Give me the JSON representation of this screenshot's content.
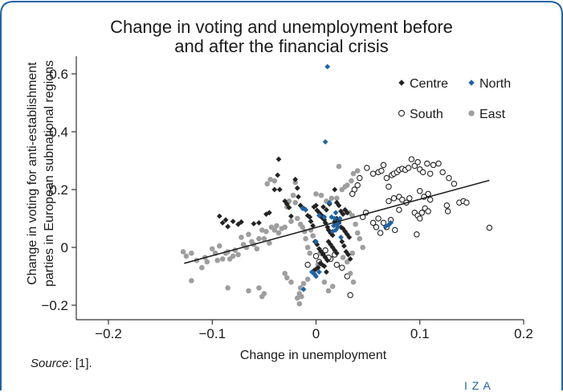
{
  "chart_data": {
    "type": "scatter",
    "title": "Change in voting and unemployment before and after the financial crisis",
    "title_lines": [
      "Change in voting and unemployment before",
      "and after the financial crisis"
    ],
    "xlabel": "Change in unemployment",
    "ylabel": "Change in voting for anti-establishment parties in European subnational regions",
    "ylabel_lines": [
      "Change in voting for anti-establishment",
      "parties in European subnational regions"
    ],
    "xlim": [
      -0.2,
      0.2
    ],
    "ylim": [
      -0.22,
      0.63
    ],
    "xticks": [
      -0.2,
      -0.1,
      0,
      0.1,
      0.2
    ],
    "xtick_labels": [
      "−0.2",
      "−0.1",
      "0",
      "0.1",
      "0.2"
    ],
    "yticks": [
      -0.2,
      0,
      0.2,
      0.4,
      0.6
    ],
    "ytick_labels": [
      "−0.2",
      "0",
      "0.2",
      "0.4",
      "0.6"
    ],
    "grid": false,
    "legend_position": "top-right",
    "colors": {
      "Centre": "#222222",
      "North": "#1f63a6",
      "South": "#222222",
      "East": "#9e9e9e",
      "trend": "#222222",
      "frame": "#1f63a6"
    },
    "trendline": {
      "x": [
        -0.127,
        0.167
      ],
      "y": [
        -0.055,
        0.232
      ]
    },
    "series": [
      {
        "name": "Centre",
        "marker": "diamond",
        "points": [
          [
            -0.093,
            0.108
          ],
          [
            -0.09,
            0.085
          ],
          [
            -0.087,
            0.095
          ],
          [
            -0.085,
            0.072
          ],
          [
            -0.08,
            0.09
          ],
          [
            -0.075,
            0.08
          ],
          [
            -0.072,
            0.088
          ],
          [
            -0.06,
            0.082
          ],
          [
            -0.055,
            0.085
          ],
          [
            -0.048,
            0.115
          ],
          [
            -0.045,
            0.12
          ],
          [
            -0.04,
            0.2
          ],
          [
            -0.037,
            0.25
          ],
          [
            -0.036,
            0.305
          ],
          [
            -0.035,
            0.2
          ],
          [
            -0.03,
            0.16
          ],
          [
            -0.028,
            0.15
          ],
          [
            -0.026,
            0.138
          ],
          [
            -0.024,
            0.108
          ],
          [
            -0.02,
            0.235
          ],
          [
            -0.018,
            0.205
          ],
          [
            -0.017,
            0.175
          ],
          [
            -0.015,
            0.145
          ],
          [
            -0.012,
            0.135
          ],
          [
            -0.01,
            0.13
          ],
          [
            -0.008,
            0.11
          ],
          [
            -0.006,
            0.105
          ],
          [
            -0.005,
            0.09
          ],
          [
            -0.003,
            0.075
          ],
          [
            -0.002,
            0.14
          ],
          [
            0.0,
            0.145
          ],
          [
            0.001,
            0.128
          ],
          [
            0.003,
            0.12
          ],
          [
            0.005,
            0.112
          ],
          [
            0.006,
            0.102
          ],
          [
            0.008,
            0.095
          ],
          [
            0.009,
            0.085
          ],
          [
            0.011,
            0.07
          ],
          [
            0.012,
            0.06
          ],
          [
            0.014,
            0.05
          ],
          [
            0.016,
            0.042
          ],
          [
            0.018,
            0.09
          ],
          [
            0.02,
            0.1
          ],
          [
            0.022,
            0.085
          ],
          [
            0.024,
            0.07
          ],
          [
            0.026,
            0.065
          ],
          [
            0.028,
            0.055
          ],
          [
            0.03,
            0.045
          ],
          [
            0.032,
            0.035
          ],
          [
            -0.001,
            0.02
          ],
          [
            0.001,
            0.01
          ],
          [
            0.003,
            -0.005
          ],
          [
            0.005,
            -0.015
          ],
          [
            0.007,
            -0.025
          ],
          [
            0.009,
            -0.035
          ],
          [
            0.011,
            -0.045
          ],
          [
            0.004,
            -0.055
          ],
          [
            0.006,
            -0.06
          ],
          [
            0.008,
            -0.065
          ],
          [
            0.002,
            -0.07
          ],
          [
            0.0,
            -0.075
          ],
          [
            -0.002,
            -0.08
          ],
          [
            0.01,
            -0.085
          ],
          [
            0.012,
            0.02
          ],
          [
            0.014,
            0.01
          ],
          [
            0.016,
            0.0
          ],
          [
            0.018,
            -0.01
          ],
          [
            0.02,
            -0.02
          ],
          [
            0.022,
            0.145
          ],
          [
            0.024,
            0.125
          ],
          [
            0.026,
            0.115
          ],
          [
            0.028,
            0.13
          ],
          [
            0.03,
            0.12
          ],
          [
            0.02,
            0.155
          ],
          [
            0.018,
            0.2
          ],
          [
            0.025,
            0.02
          ],
          [
            0.027,
            0.005
          ],
          [
            0.029,
            -0.015
          ],
          [
            0.031,
            -0.025
          ],
          [
            0.033,
            -0.04
          ],
          [
            0.01,
            0.13
          ],
          [
            0.013,
            0.15
          ],
          [
            0.007,
            0.14
          ]
        ]
      },
      {
        "name": "North",
        "marker": "diamond",
        "points": [
          [
            0.011,
            0.625
          ],
          [
            0.009,
            0.365
          ],
          [
            -0.013,
            0.135
          ],
          [
            -0.01,
            0.13
          ],
          [
            0.003,
            0.11
          ],
          [
            0.008,
            0.105
          ],
          [
            0.013,
            0.155
          ],
          [
            0.018,
            0.1
          ],
          [
            0.02,
            0.08
          ],
          [
            0.019,
            0.06
          ],
          [
            0.021,
            0.07
          ],
          [
            0.017,
            0.075
          ],
          [
            0.022,
            0.09
          ],
          [
            0.0,
            0.02
          ],
          [
            -0.002,
            -0.09
          ],
          [
            -0.001,
            -0.095
          ],
          [
            0.0,
            -0.1
          ],
          [
            -0.004,
            -0.085
          ],
          [
            0.003,
            -0.085
          ],
          [
            -0.012,
            -0.145
          ],
          [
            0.024,
            0.035
          ],
          [
            0.07,
            0.078
          ],
          [
            0.067,
            0.072
          ],
          [
            0.072,
            0.085
          ],
          [
            0.019,
            0.12
          ],
          [
            0.015,
            0.105
          ],
          [
            0.016,
            0.055
          ],
          [
            0.023,
            0.1
          ]
        ]
      },
      {
        "name": "South",
        "marker": "circle",
        "points": [
          [
            0.049,
            0.275
          ],
          [
            0.055,
            0.255
          ],
          [
            0.06,
            0.26
          ],
          [
            0.063,
            0.265
          ],
          [
            0.065,
            0.285
          ],
          [
            0.068,
            0.24
          ],
          [
            0.07,
            0.21
          ],
          [
            0.073,
            0.25
          ],
          [
            0.075,
            0.255
          ],
          [
            0.078,
            0.26
          ],
          [
            0.08,
            0.268
          ],
          [
            0.083,
            0.272
          ],
          [
            0.086,
            0.268
          ],
          [
            0.089,
            0.275
          ],
          [
            0.092,
            0.305
          ],
          [
            0.095,
            0.282
          ],
          [
            0.098,
            0.295
          ],
          [
            0.1,
            0.27
          ],
          [
            0.103,
            0.26
          ],
          [
            0.107,
            0.29
          ],
          [
            0.11,
            0.255
          ],
          [
            0.113,
            0.285
          ],
          [
            0.118,
            0.29
          ],
          [
            0.122,
            0.26
          ],
          [
            0.128,
            0.24
          ],
          [
            0.133,
            0.22
          ],
          [
            0.138,
            0.155
          ],
          [
            0.142,
            0.16
          ],
          [
            0.145,
            0.155
          ],
          [
            0.126,
            0.145
          ],
          [
            0.127,
            0.125
          ],
          [
            0.1,
            0.195
          ],
          [
            0.104,
            0.175
          ],
          [
            0.108,
            0.185
          ],
          [
            0.11,
            0.165
          ],
          [
            0.095,
            0.12
          ],
          [
            0.098,
            0.11
          ],
          [
            0.1,
            0.1
          ],
          [
            0.102,
            0.12
          ],
          [
            0.105,
            0.135
          ],
          [
            0.108,
            0.125
          ],
          [
            0.07,
            0.16
          ],
          [
            0.075,
            0.17
          ],
          [
            0.08,
            0.175
          ],
          [
            0.083,
            0.165
          ],
          [
            0.087,
            0.155
          ],
          [
            0.09,
            0.17
          ],
          [
            0.06,
            0.1
          ],
          [
            0.055,
            0.085
          ],
          [
            0.058,
            0.07
          ],
          [
            0.062,
            0.05
          ],
          [
            0.065,
            0.085
          ],
          [
            0.068,
            0.07
          ],
          [
            0.072,
            0.095
          ],
          [
            0.076,
            0.06
          ],
          [
            0.08,
            0.13
          ],
          [
            0.045,
            0.105
          ],
          [
            0.048,
            0.12
          ],
          [
            0.042,
            0.24
          ],
          [
            0.04,
            0.215
          ],
          [
            0.037,
            0.2
          ],
          [
            0.035,
            0.185
          ],
          [
            0.097,
            0.045
          ],
          [
            0.167,
            0.068
          ],
          [
            -0.008,
            -0.06
          ],
          [
            0.0,
            -0.03
          ],
          [
            0.003,
            -0.05
          ],
          [
            0.006,
            -0.02
          ],
          [
            0.009,
            -0.01
          ],
          [
            0.014,
            -0.04
          ],
          [
            0.02,
            -0.06
          ],
          [
            0.025,
            -0.07
          ],
          [
            0.03,
            -0.1
          ],
          [
            0.033,
            -0.165
          ],
          [
            0.012,
            -0.035
          ],
          [
            0.018,
            -0.025
          ]
        ]
      },
      {
        "name": "East",
        "marker": "circle",
        "points": [
          [
            -0.128,
            -0.015
          ],
          [
            -0.125,
            -0.03
          ],
          [
            -0.12,
            -0.02
          ],
          [
            -0.115,
            -0.045
          ],
          [
            -0.11,
            -0.07
          ],
          [
            -0.107,
            -0.035
          ],
          [
            -0.105,
            -0.05
          ],
          [
            -0.1,
            -0.005
          ],
          [
            -0.097,
            -0.02
          ],
          [
            -0.095,
            -0.045
          ],
          [
            -0.093,
            0.005
          ],
          [
            -0.09,
            -0.04
          ],
          [
            -0.087,
            -0.02
          ],
          [
            -0.085,
            -0.015
          ],
          [
            -0.083,
            -0.04
          ],
          [
            -0.08,
            -0.03
          ],
          [
            -0.078,
            -0.01
          ],
          [
            -0.075,
            -0.025
          ],
          [
            -0.072,
            0.035
          ],
          [
            -0.07,
            0.01
          ],
          [
            -0.067,
            0.0
          ],
          [
            -0.065,
            0.045
          ],
          [
            -0.062,
            0.02
          ],
          [
            -0.06,
            0.01
          ],
          [
            -0.057,
            -0.005
          ],
          [
            -0.055,
            0.03
          ],
          [
            -0.052,
            0.06
          ],
          [
            -0.05,
            0.03
          ],
          [
            -0.048,
            0.055
          ],
          [
            -0.045,
            0.015
          ],
          [
            -0.043,
            0.07
          ],
          [
            -0.04,
            0.06
          ],
          [
            -0.038,
            0.075
          ],
          [
            -0.036,
            0.05
          ],
          [
            -0.033,
            0.065
          ],
          [
            -0.03,
            0.07
          ],
          [
            -0.028,
            0.14
          ],
          [
            -0.026,
            0.16
          ],
          [
            -0.024,
            0.09
          ],
          [
            -0.022,
            0.18
          ],
          [
            -0.02,
            0.155
          ],
          [
            -0.018,
            0.1
          ],
          [
            -0.015,
            0.08
          ],
          [
            -0.013,
            0.07
          ],
          [
            -0.011,
            0.055
          ],
          [
            -0.01,
            0.03
          ],
          [
            -0.008,
            0.0
          ],
          [
            -0.006,
            -0.02
          ],
          [
            -0.005,
            0.06
          ],
          [
            -0.003,
            0.04
          ],
          [
            -0.047,
            0.22
          ],
          [
            -0.044,
            0.235
          ],
          [
            -0.04,
            0.23
          ],
          [
            -0.02,
            0.225
          ],
          [
            0.0,
            0.185
          ],
          [
            0.005,
            0.18
          ],
          [
            0.01,
            0.16
          ],
          [
            0.015,
            0.17
          ],
          [
            0.02,
            0.17
          ],
          [
            0.025,
            0.2
          ],
          [
            0.028,
            0.21
          ],
          [
            0.03,
            0.215
          ],
          [
            0.034,
            0.23
          ],
          [
            0.036,
            0.255
          ],
          [
            0.04,
            0.265
          ],
          [
            0.022,
            0.28
          ],
          [
            0.032,
            0.12
          ],
          [
            0.035,
            0.11
          ],
          [
            0.038,
            0.08
          ],
          [
            0.04,
            0.05
          ],
          [
            0.042,
            0.03
          ],
          [
            0.045,
            0.0
          ],
          [
            0.035,
            -0.02
          ],
          [
            0.03,
            -0.05
          ],
          [
            0.033,
            -0.09
          ],
          [
            0.036,
            -0.12
          ],
          [
            0.016,
            -0.135
          ],
          [
            0.012,
            -0.15
          ],
          [
            0.008,
            -0.12
          ],
          [
            -0.008,
            -0.11
          ],
          [
            -0.012,
            -0.125
          ],
          [
            -0.015,
            -0.14
          ],
          [
            -0.016,
            -0.16
          ],
          [
            -0.018,
            -0.175
          ],
          [
            -0.024,
            -0.12
          ],
          [
            -0.028,
            -0.105
          ],
          [
            -0.03,
            -0.09
          ],
          [
            -0.05,
            -0.16
          ],
          [
            -0.052,
            -0.17
          ],
          [
            -0.055,
            -0.14
          ],
          [
            -0.065,
            -0.15
          ],
          [
            -0.085,
            -0.14
          ],
          [
            -0.12,
            -0.115
          ],
          [
            -0.016,
            -0.195
          ],
          [
            -0.014,
            -0.17
          ],
          [
            0.002,
            -0.06
          ],
          [
            0.004,
            -0.02
          ],
          [
            0.026,
            -0.035
          ]
        ]
      }
    ]
  },
  "source": {
    "label": "Source",
    "rest": ": [1]."
  },
  "footer": {
    "logo_text": "I Z A"
  }
}
